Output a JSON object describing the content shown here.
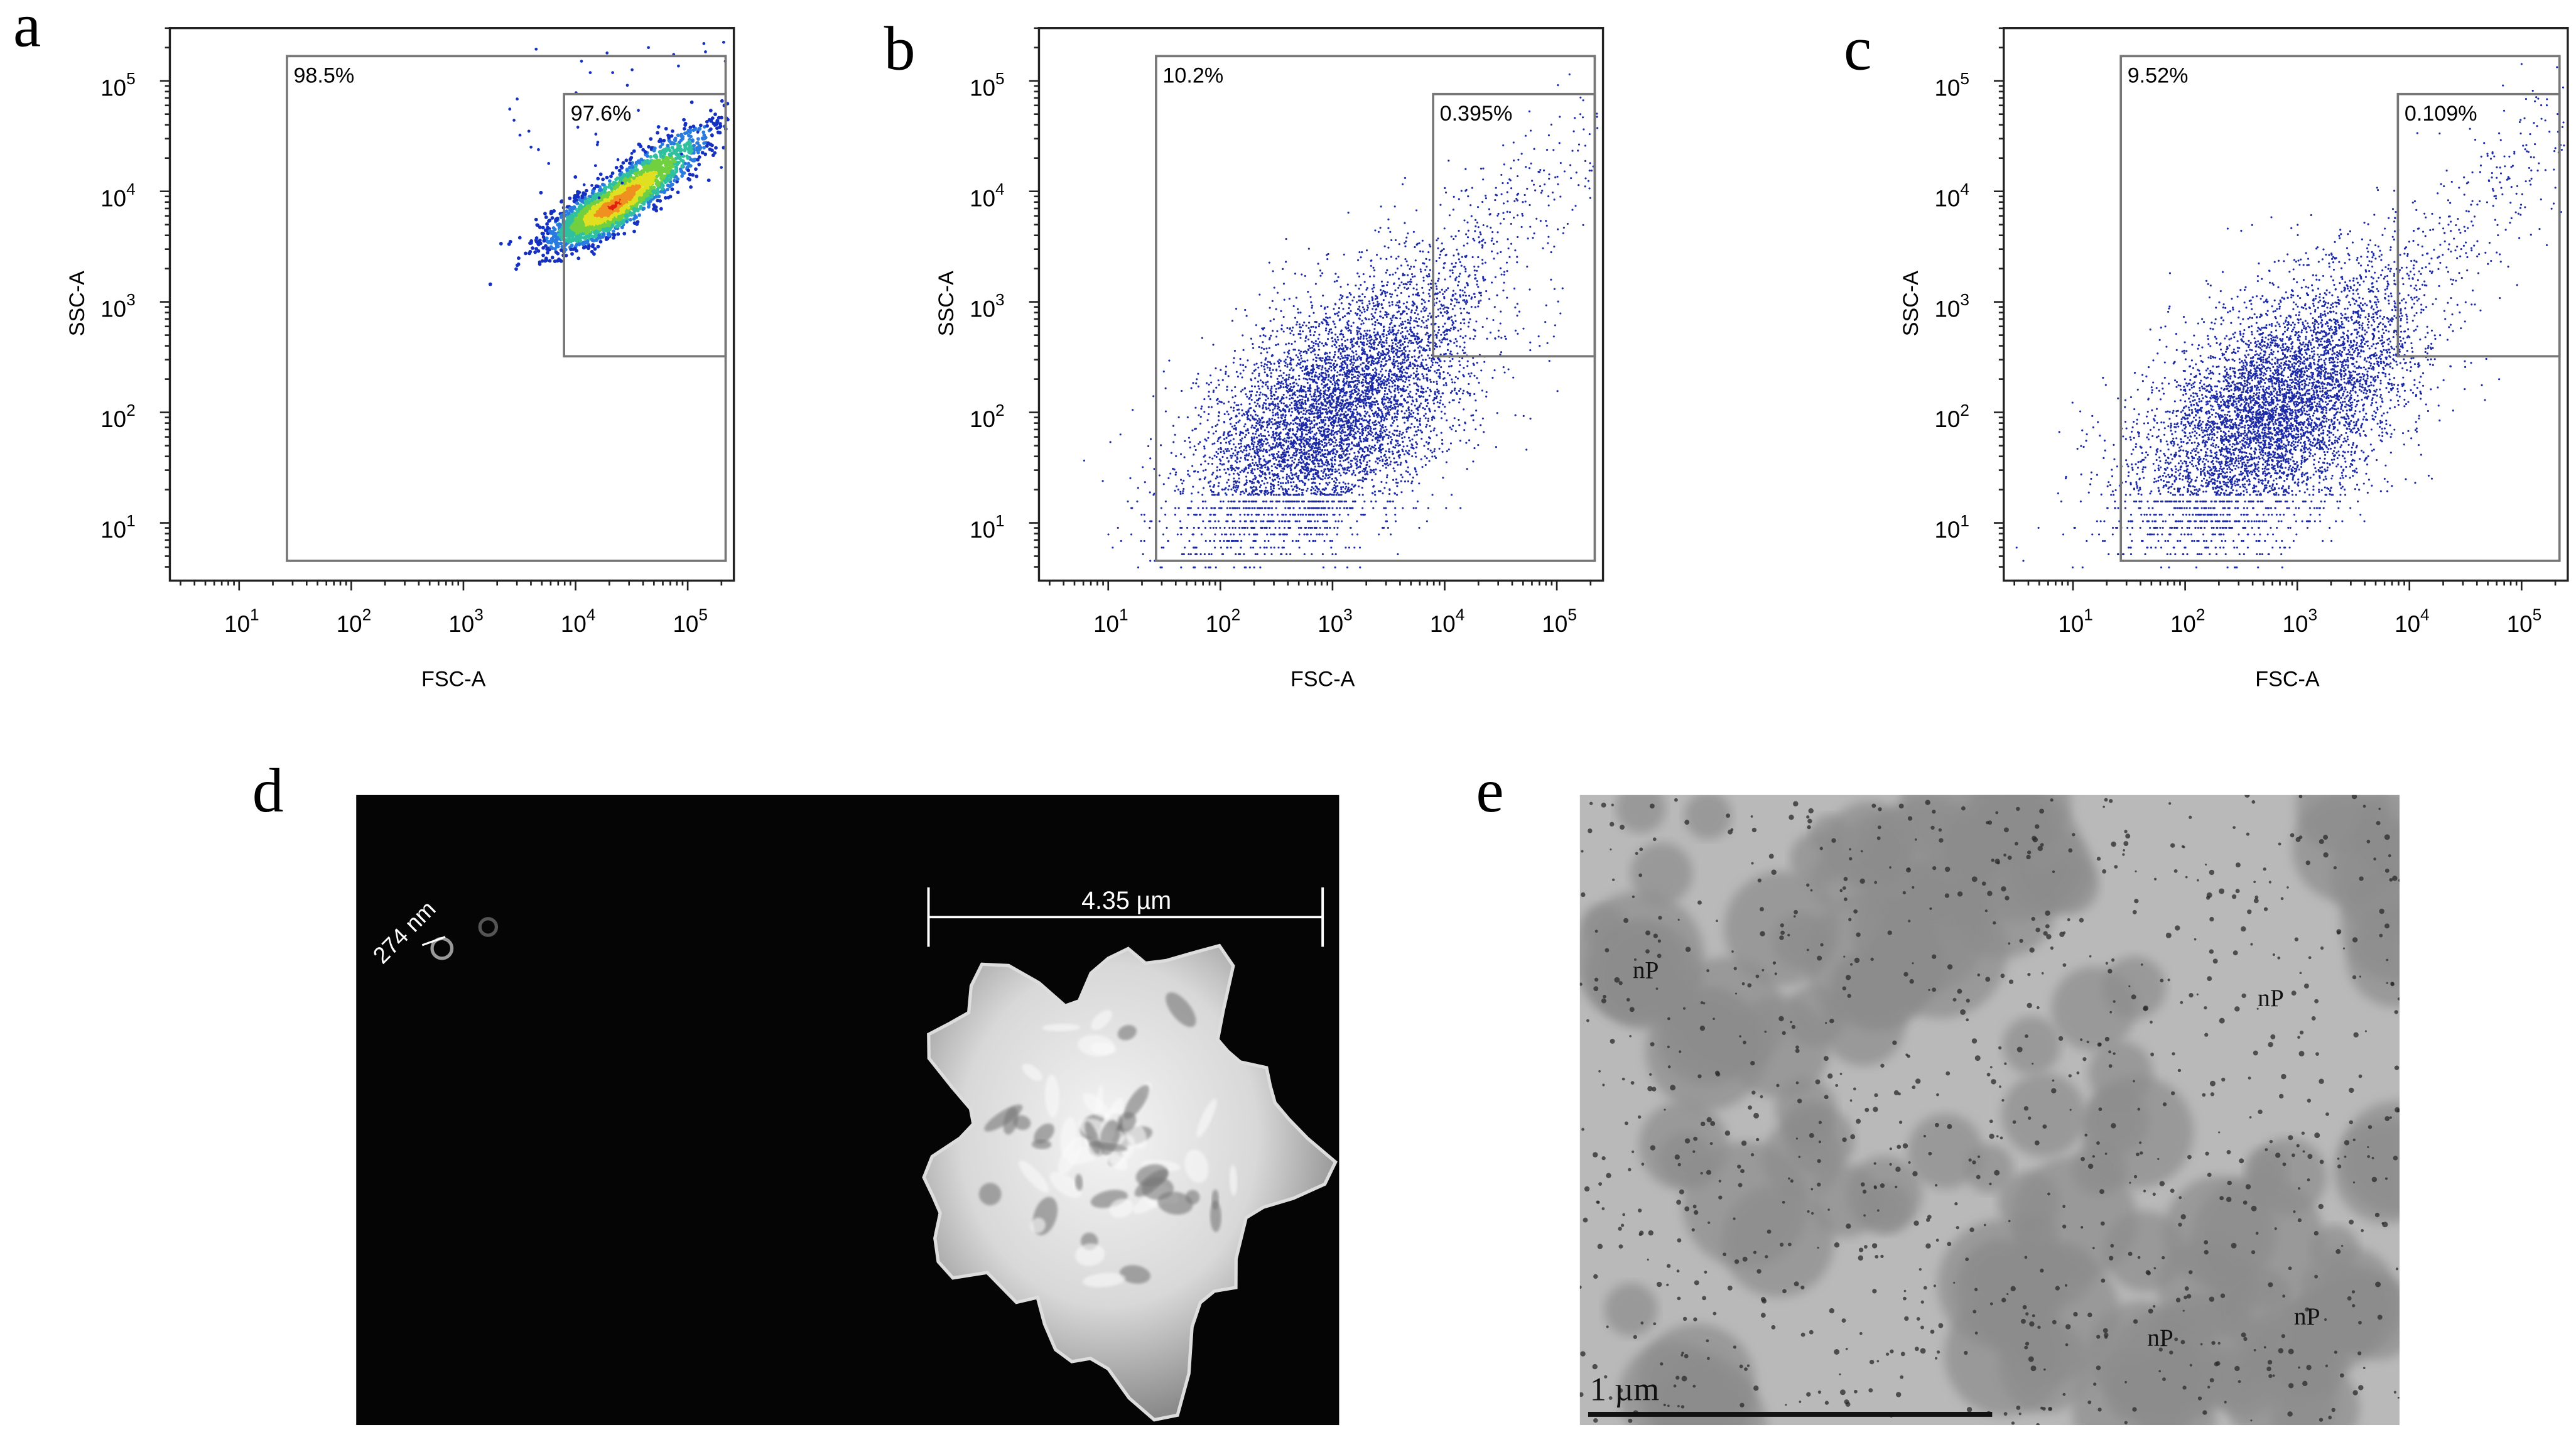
{
  "panels": [
    {
      "label": "a",
      "x_axis": "FSC-A",
      "y_axis": "SSC-A",
      "tick_base": "10",
      "x_tick_exponents": [
        "1",
        "2",
        "3",
        "4",
        "5"
      ],
      "y_tick_exponents": [
        "1",
        "2",
        "3",
        "4",
        "5"
      ],
      "gates": [
        "98.5%",
        "97.6%"
      ]
    },
    {
      "label": "b",
      "x_axis": "FSC-A",
      "y_axis": "SSC-A",
      "tick_base": "10",
      "x_tick_exponents": [
        "1",
        "2",
        "3",
        "4",
        "5"
      ],
      "y_tick_exponents": [
        "1",
        "2",
        "3",
        "4",
        "5"
      ],
      "gates": [
        "10.2%",
        "0.395%"
      ]
    },
    {
      "label": "c",
      "x_axis": "FSC-A",
      "y_axis": "SSC-A",
      "tick_base": "10",
      "x_tick_exponents": [
        "1",
        "2",
        "3",
        "4",
        "5"
      ],
      "y_tick_exponents": [
        "1",
        "2",
        "3",
        "4",
        "5"
      ],
      "gates": [
        "9.52%",
        "0.109%"
      ]
    },
    {
      "label": "d",
      "scale_bars": [
        "4.35 µm",
        "274 nm"
      ]
    },
    {
      "label": "e",
      "scale_bar": "1 µm",
      "annotations": [
        "nP",
        "nP",
        "nP",
        "nP"
      ]
    }
  ]
}
